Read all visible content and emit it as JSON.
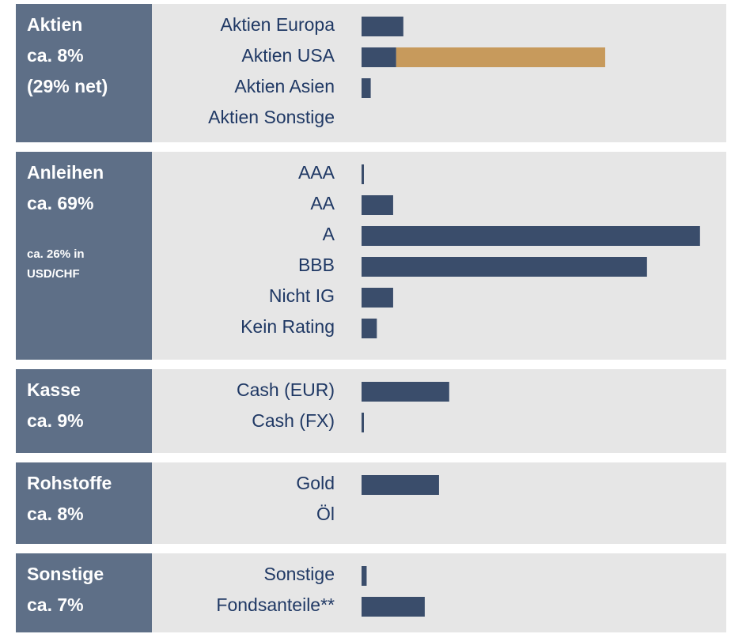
{
  "chart_data": {
    "type": "bar",
    "color": "#3a4d6b",
    "extra_color": "#c79a5c",
    "xlim": [
      0,
      35
    ],
    "groups": [
      {
        "title": [
          "Aktien",
          "ca. 8%",
          "(29% net)"
        ],
        "categories": [
          "Aktien Europa",
          "Aktien USA",
          "Aktien Asien",
          "Aktien Sonstige"
        ],
        "values": [
          4.1,
          3.4,
          0.9,
          0
        ],
        "extra_values": [
          null,
          20.5,
          null,
          null
        ]
      },
      {
        "title": [
          "Anleihen",
          "ca. 69%"
        ],
        "note": [
          "ca. 26% in",
          "USD/CHF"
        ],
        "categories": [
          "AAA",
          "AA",
          "A",
          "BBB",
          "Nicht IG",
          "Kein Rating"
        ],
        "values": [
          0.2,
          3.1,
          33.2,
          28,
          3.1,
          1.5
        ]
      },
      {
        "title": [
          "Kasse",
          "ca. 9%"
        ],
        "categories": [
          "Cash (EUR)",
          "Cash (FX)"
        ],
        "values": [
          8.6,
          0.2
        ]
      },
      {
        "title": [
          "Rohstoffe",
          "ca. 8%"
        ],
        "categories": [
          "Gold",
          "Öl"
        ],
        "values": [
          7.6,
          0
        ]
      },
      {
        "title": [
          "Sonstige",
          "ca. 7%"
        ],
        "categories": [
          "Sonstige",
          "Fondsanteile**"
        ],
        "values": [
          0.5,
          6.2
        ]
      }
    ]
  }
}
